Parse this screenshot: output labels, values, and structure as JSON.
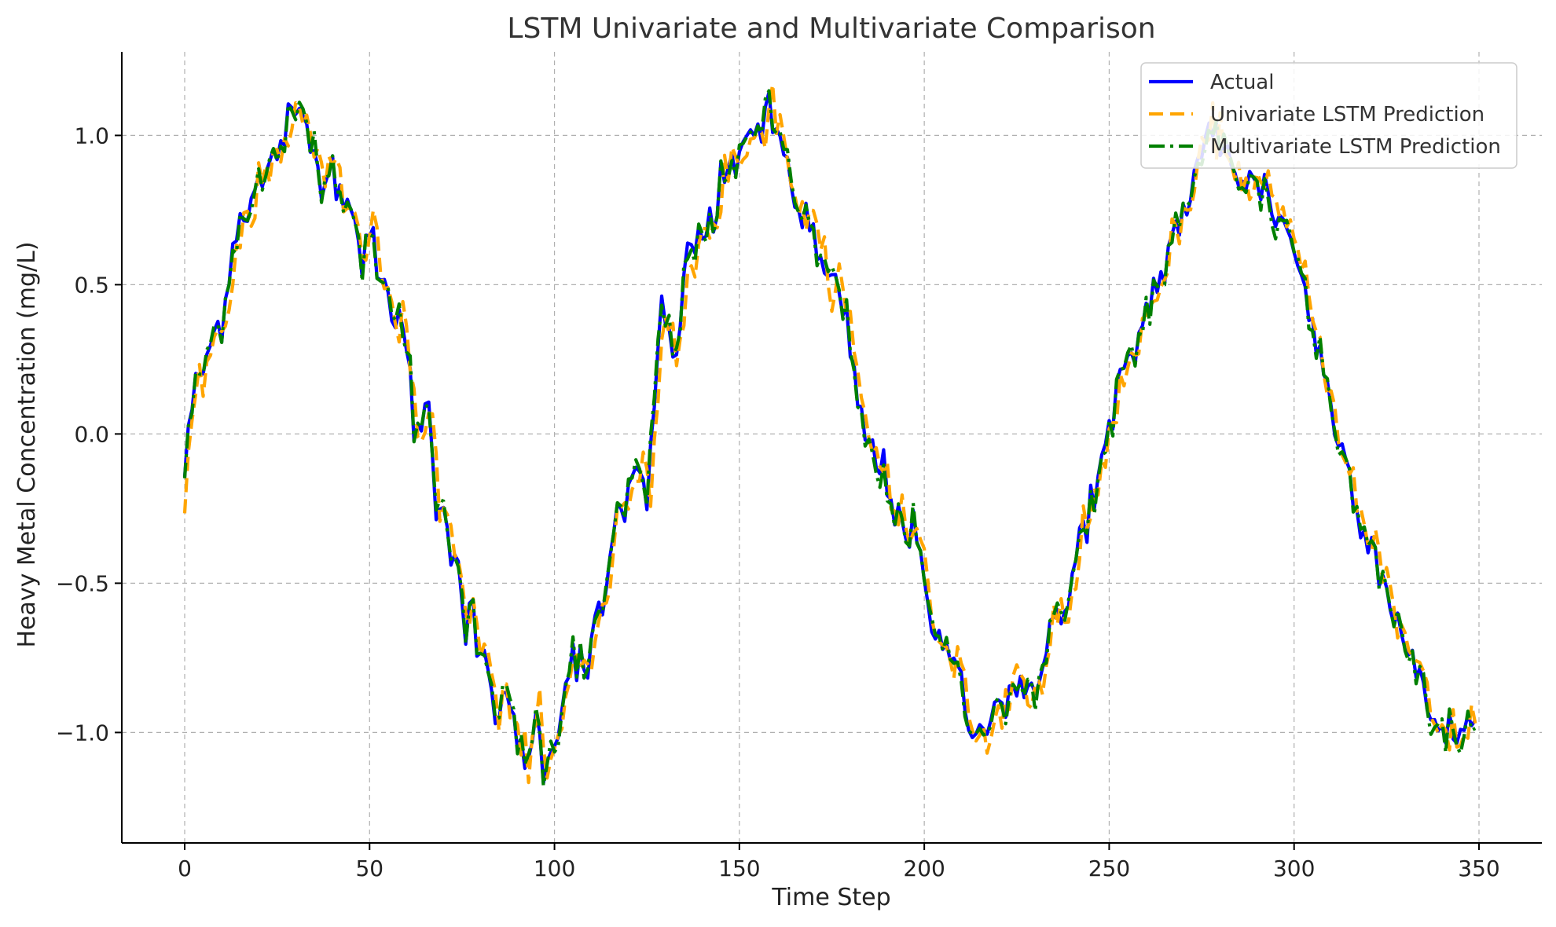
{
  "chart_data": {
    "type": "line",
    "title": "LSTM Univariate and Multivariate Comparison",
    "xlabel": "Time Step",
    "ylabel": "Heavy Metal Concentration (mg/L)",
    "xlim": [
      -17,
      367
    ],
    "ylim": [
      -1.37,
      1.28
    ],
    "xticks": [
      0,
      50,
      100,
      150,
      200,
      250,
      300,
      350
    ],
    "yticks": [
      1.0,
      0.5,
      0.0,
      -0.5,
      -1.0
    ],
    "ytick_labels": [
      "1.0",
      "0.5",
      "0.0",
      "−0.5",
      "−1.0"
    ],
    "grid": true,
    "legend_position": "top-right",
    "num_points": 350,
    "series": [
      {
        "name": "Actual",
        "color": "#0000ff",
        "style": "solid",
        "key_points": [
          [
            0,
            -0.13
          ],
          [
            2,
            0.1
          ],
          [
            5,
            0.22
          ],
          [
            10,
            0.4
          ],
          [
            14,
            0.7
          ],
          [
            18,
            0.8
          ],
          [
            22,
            0.85
          ],
          [
            25,
            0.95
          ],
          [
            28,
            1.05
          ],
          [
            30,
            1.02
          ],
          [
            32,
            1.08
          ],
          [
            35,
            0.92
          ],
          [
            40,
            0.88
          ],
          [
            44,
            0.82
          ],
          [
            46,
            0.7
          ],
          [
            48,
            0.6
          ],
          [
            50,
            0.68
          ],
          [
            52,
            0.52
          ],
          [
            55,
            0.45
          ],
          [
            58,
            0.4
          ],
          [
            60,
            0.25
          ],
          [
            62,
            0.05
          ],
          [
            64,
            0.05
          ],
          [
            66,
            0.08
          ],
          [
            68,
            -0.25
          ],
          [
            70,
            -0.2
          ],
          [
            72,
            -0.35
          ],
          [
            74,
            -0.45
          ],
          [
            76,
            -0.65
          ],
          [
            78,
            -0.62
          ],
          [
            80,
            -0.8
          ],
          [
            82,
            -0.78
          ],
          [
            85,
            -0.95
          ],
          [
            88,
            -0.92
          ],
          [
            90,
            -1.05
          ],
          [
            93,
            -1.05
          ],
          [
            95,
            -0.98
          ],
          [
            97,
            -1.08
          ],
          [
            100,
            -1.02
          ],
          [
            103,
            -0.85
          ],
          [
            105,
            -0.7
          ],
          [
            108,
            -0.8
          ],
          [
            110,
            -0.75
          ],
          [
            112,
            -0.6
          ],
          [
            114,
            -0.55
          ],
          [
            116,
            -0.3
          ],
          [
            118,
            -0.25
          ],
          [
            120,
            -0.2
          ],
          [
            122,
            -0.15
          ],
          [
            125,
            -0.25
          ],
          [
            127,
            0.1
          ],
          [
            129,
            0.45
          ],
          [
            131,
            0.28
          ],
          [
            133,
            0.32
          ],
          [
            135,
            0.5
          ],
          [
            137,
            0.62
          ],
          [
            140,
            0.68
          ],
          [
            143,
            0.72
          ],
          [
            145,
            0.8
          ],
          [
            148,
            0.9
          ],
          [
            150,
            0.95
          ],
          [
            152,
            1.05
          ],
          [
            155,
            0.98
          ],
          [
            158,
            1.05
          ],
          [
            160,
            1.02
          ],
          [
            163,
            0.9
          ],
          [
            165,
            0.8
          ],
          [
            168,
            0.72
          ],
          [
            170,
            0.65
          ],
          [
            172,
            0.55
          ],
          [
            175,
            0.5
          ],
          [
            178,
            0.4
          ],
          [
            180,
            0.3
          ],
          [
            182,
            0.1
          ],
          [
            185,
            -0.05
          ],
          [
            188,
            -0.1
          ],
          [
            190,
            -0.18
          ],
          [
            193,
            -0.25
          ],
          [
            195,
            -0.3
          ],
          [
            198,
            -0.38
          ],
          [
            200,
            -0.5
          ],
          [
            203,
            -0.75
          ],
          [
            206,
            -0.65
          ],
          [
            208,
            -0.8
          ],
          [
            210,
            -0.82
          ],
          [
            213,
            -0.95
          ],
          [
            215,
            -1.0
          ],
          [
            217,
            -0.95
          ],
          [
            220,
            -0.9
          ],
          [
            222,
            -0.88
          ],
          [
            225,
            -0.92
          ],
          [
            228,
            -0.85
          ],
          [
            230,
            -0.8
          ],
          [
            233,
            -0.72
          ],
          [
            235,
            -0.6
          ],
          [
            238,
            -0.65
          ],
          [
            240,
            -0.48
          ],
          [
            243,
            -0.3
          ],
          [
            245,
            -0.22
          ],
          [
            248,
            -0.12
          ],
          [
            250,
            0.0
          ],
          [
            253,
            0.15
          ],
          [
            255,
            0.22
          ],
          [
            258,
            0.32
          ],
          [
            260,
            0.42
          ],
          [
            263,
            0.5
          ],
          [
            265,
            0.58
          ],
          [
            268,
            0.68
          ],
          [
            270,
            0.75
          ],
          [
            272,
            0.8
          ],
          [
            275,
            0.9
          ],
          [
            277,
            1.02
          ],
          [
            280,
            0.98
          ],
          [
            283,
            0.95
          ],
          [
            285,
            0.88
          ],
          [
            287,
            0.82
          ],
          [
            290,
            0.85
          ],
          [
            293,
            0.8
          ],
          [
            295,
            0.75
          ],
          [
            298,
            0.68
          ],
          [
            300,
            0.62
          ],
          [
            303,
            0.5
          ],
          [
            305,
            0.35
          ],
          [
            308,
            0.2
          ],
          [
            310,
            0.1
          ],
          [
            313,
            -0.05
          ],
          [
            315,
            -0.15
          ],
          [
            318,
            -0.25
          ],
          [
            320,
            -0.32
          ],
          [
            323,
            -0.45
          ],
          [
            325,
            -0.5
          ],
          [
            328,
            -0.62
          ],
          [
            330,
            -0.72
          ],
          [
            333,
            -0.8
          ],
          [
            335,
            -0.9
          ],
          [
            338,
            -0.95
          ],
          [
            340,
            -0.98
          ],
          [
            343,
            -1.02
          ],
          [
            345,
            -1.0
          ],
          [
            347,
            -0.98
          ],
          [
            349,
            -0.98
          ]
        ]
      },
      {
        "name": "Univariate LSTM Prediction",
        "color": "#ffa500",
        "style": "dashed"
      },
      {
        "name": "Multivariate LSTM Prediction",
        "color": "#008000",
        "style": "dashdot"
      }
    ]
  }
}
